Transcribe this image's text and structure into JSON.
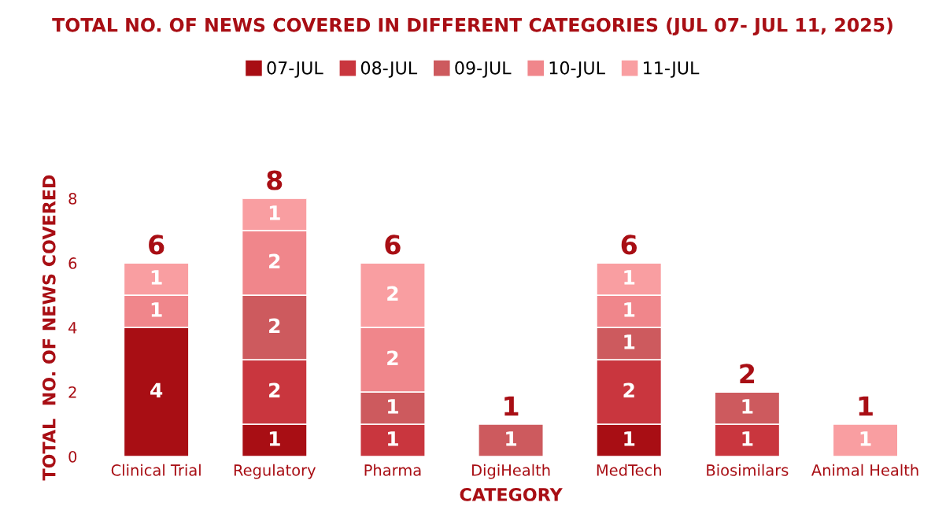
{
  "chart_data": {
    "type": "bar",
    "stacked": true,
    "title": "TOTAL NO. OF NEWS COVERED IN DIFFERENT CATEGORIES (JUL 07- JUL 11, 2025)",
    "xlabel": "CATEGORY",
    "ylabel": "TOTAL  NO. OF NEWS COVERED",
    "categories": [
      "Clinical Trial",
      "Regulatory",
      "Pharma",
      "DigiHealth",
      "MedTech",
      "Biosimilars",
      "Animal Health"
    ],
    "series": [
      {
        "name": "07-JUL",
        "color": "#a80e14",
        "values": [
          4,
          1,
          null,
          null,
          1,
          null,
          null
        ]
      },
      {
        "name": "08-JUL",
        "color": "#c9363e",
        "values": [
          null,
          2,
          1,
          null,
          2,
          1,
          null
        ]
      },
      {
        "name": "09-JUL",
        "color": "#cd5a5e",
        "values": [
          null,
          2,
          1,
          1,
          1,
          1,
          null
        ]
      },
      {
        "name": "10-JUL",
        "color": "#f0868b",
        "values": [
          1,
          2,
          2,
          null,
          1,
          null,
          null
        ]
      },
      {
        "name": "11-JUL",
        "color": "#f99ea1",
        "values": [
          1,
          1,
          2,
          null,
          1,
          null,
          1
        ]
      }
    ],
    "totals": [
      "6",
      "8",
      "6",
      "1",
      "6",
      "2",
      "1"
    ],
    "data_labels": true,
    "ylim": [
      0,
      8
    ],
    "yticks": [
      0,
      2,
      4,
      6,
      8
    ],
    "grid": false,
    "legend": "top"
  }
}
